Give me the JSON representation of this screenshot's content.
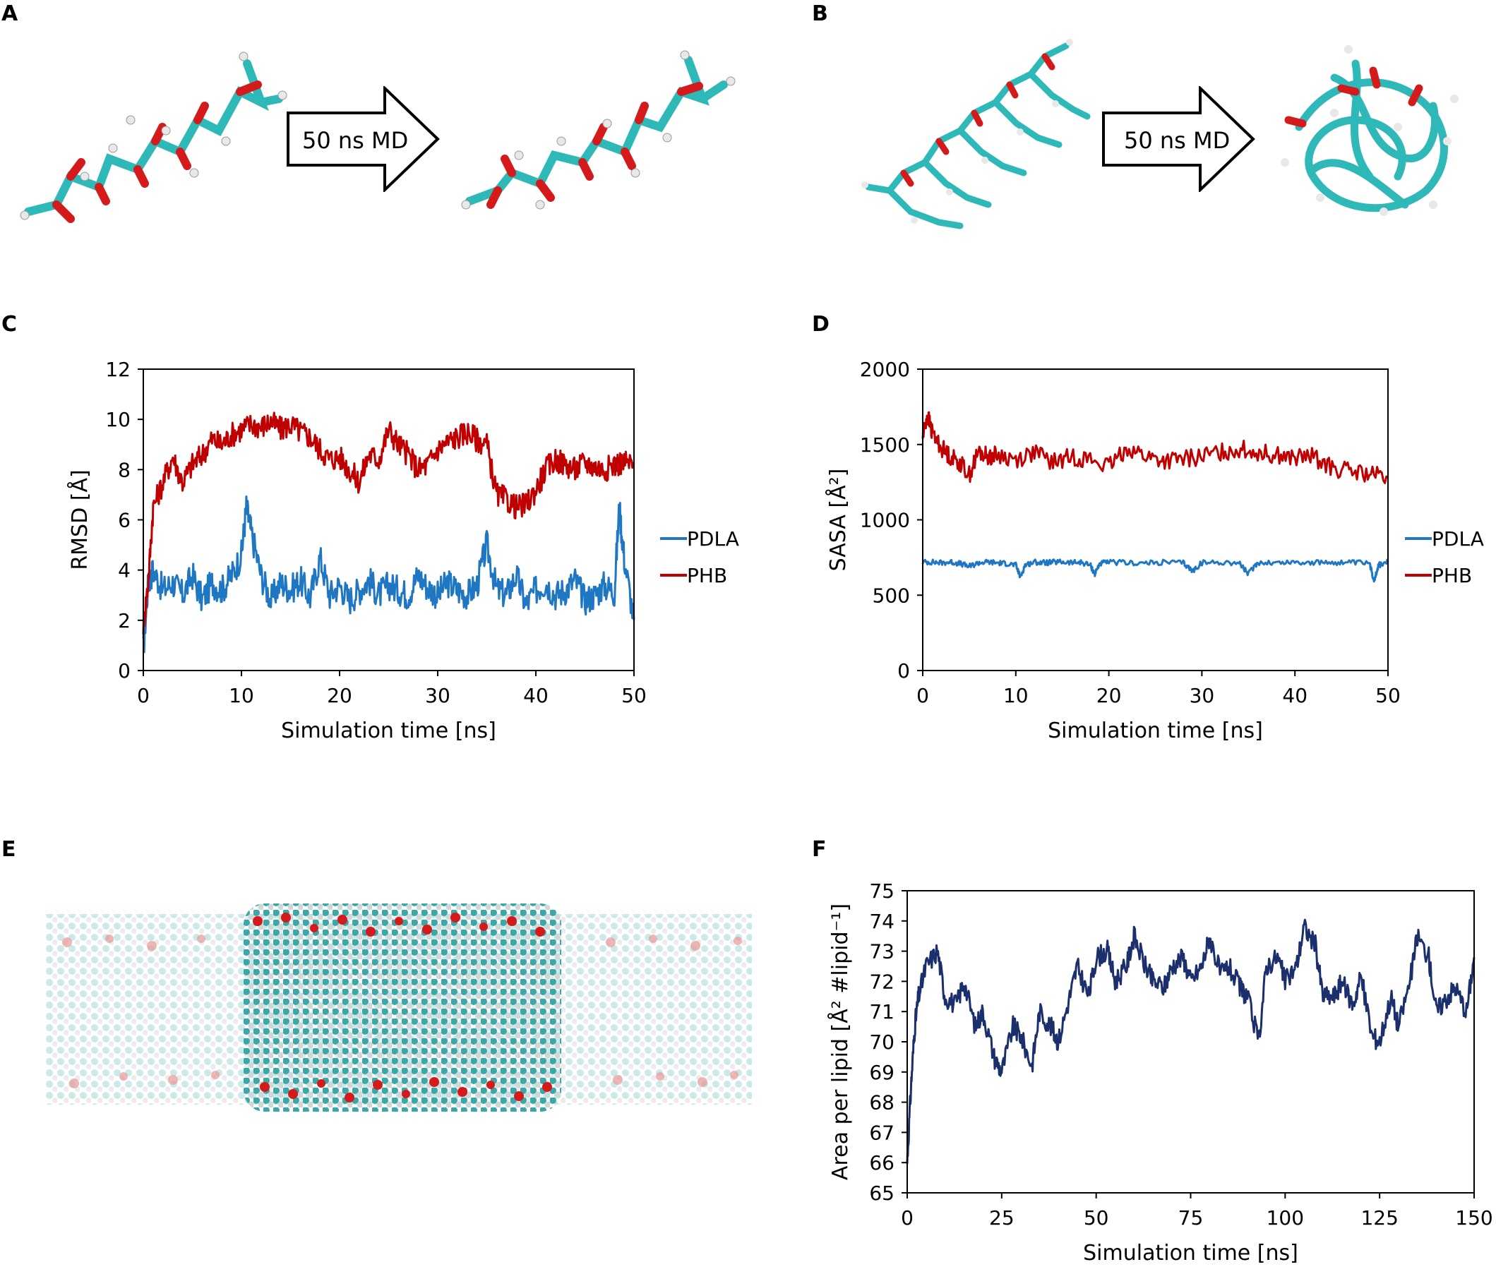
{
  "panels": {
    "A": "A",
    "B": "B",
    "C": "C",
    "D": "D",
    "E": "E",
    "F": "F"
  },
  "arrows": {
    "a_label": "50 ns MD",
    "b_label": "50 ns MD"
  },
  "colors": {
    "pdla": "#1f77c4",
    "phb": "#c00000",
    "apl": "#1a2f6b",
    "carbon": "#2fb8b8",
    "oxygen": "#d41a1a",
    "hydrogen": "#e8e8e8"
  },
  "chart_data": [
    {
      "id": "C",
      "type": "line",
      "xlabel": "Simulation time [ns]",
      "ylabel": "RMSD [Å]",
      "xlim": [
        0,
        50
      ],
      "ylim": [
        0,
        12
      ],
      "xticks": [
        0,
        10,
        20,
        30,
        40,
        50
      ],
      "yticks": [
        0,
        2,
        4,
        6,
        8,
        10,
        12
      ],
      "legend": "right",
      "series": [
        {
          "name": "PDLA",
          "color": "#1f77c4",
          "x": [
            0,
            0.5,
            1,
            2,
            3,
            4,
            5,
            6,
            7,
            8,
            9,
            10,
            10.5,
            11,
            12,
            13,
            14,
            15,
            16,
            17,
            18,
            19,
            20,
            21,
            22,
            23,
            24,
            25,
            26,
            27,
            28,
            29,
            30,
            31,
            32,
            33,
            34,
            35,
            36,
            37,
            38,
            39,
            40,
            41,
            42,
            43,
            44,
            45,
            46,
            47,
            48,
            48.5,
            49,
            50
          ],
          "values": [
            0.8,
            3.5,
            4.0,
            3.2,
            3.5,
            3.0,
            3.8,
            2.8,
            3.5,
            3.2,
            3.8,
            4.6,
            6.5,
            5.5,
            3.8,
            2.8,
            3.5,
            3.2,
            3.6,
            2.9,
            4.5,
            3.0,
            3.4,
            2.8,
            3.2,
            3.6,
            3.0,
            3.4,
            3.2,
            3.0,
            3.8,
            3.3,
            3.0,
            3.5,
            3.2,
            3.0,
            3.4,
            5.0,
            3.2,
            3.0,
            3.8,
            2.6,
            3.2,
            3.5,
            3.0,
            3.2,
            3.6,
            2.8,
            3.0,
            3.4,
            3.1,
            6.5,
            4.5,
            2.0
          ]
        },
        {
          "name": "PHB",
          "color": "#c00000",
          "x": [
            0,
            0.5,
            1,
            2,
            3,
            4,
            5,
            6,
            7,
            8,
            9,
            10,
            11,
            12,
            13,
            14,
            15,
            16,
            17,
            18,
            19,
            20,
            21,
            22,
            23,
            24,
            25,
            26,
            27,
            28,
            29,
            30,
            31,
            32,
            33,
            34,
            35,
            36,
            37,
            38,
            39,
            40,
            41,
            42,
            43,
            44,
            45,
            46,
            47,
            48,
            49,
            50
          ],
          "values": [
            1.8,
            3.5,
            6.5,
            7.5,
            8.5,
            7.5,
            8.2,
            8.6,
            9.2,
            9.0,
            9.4,
            9.6,
            9.8,
            9.7,
            9.9,
            9.6,
            9.8,
            9.5,
            9.3,
            8.8,
            8.4,
            8.5,
            8.0,
            7.5,
            8.6,
            8.4,
            9.6,
            9.0,
            8.6,
            8.0,
            8.2,
            8.8,
            9.1,
            9.3,
            9.5,
            9.2,
            9.0,
            7.0,
            6.8,
            6.5,
            6.6,
            7.2,
            8.0,
            8.4,
            8.2,
            8.0,
            8.3,
            8.1,
            8.0,
            8.2,
            8.3,
            8.2
          ]
        }
      ]
    },
    {
      "id": "D",
      "type": "line",
      "xlabel": "Simulation time [ns]",
      "ylabel": "SASA [Å²]",
      "xlim": [
        0,
        50
      ],
      "ylim": [
        0,
        2000
      ],
      "xticks": [
        0,
        10,
        20,
        30,
        40,
        50
      ],
      "yticks": [
        0,
        500,
        1000,
        1500,
        2000
      ],
      "legend": "right",
      "series": [
        {
          "name": "PDLA",
          "color": "#1f77c4",
          "x": [
            0,
            1,
            2,
            3,
            4,
            5,
            6,
            7,
            8,
            9,
            10,
            10.5,
            11,
            12,
            13,
            14,
            15,
            16,
            17,
            18,
            18.5,
            19,
            20,
            22,
            24,
            26,
            28,
            29,
            30,
            32,
            34,
            35,
            36,
            38,
            40,
            42,
            44,
            46,
            48,
            48.5,
            49,
            50
          ],
          "values": [
            720,
            720,
            715,
            720,
            710,
            690,
            715,
            720,
            715,
            710,
            700,
            620,
            700,
            720,
            715,
            718,
            720,
            715,
            718,
            700,
            640,
            710,
            718,
            715,
            712,
            718,
            715,
            660,
            715,
            718,
            715,
            640,
            718,
            715,
            720,
            715,
            718,
            715,
            712,
            600,
            700,
            720
          ]
        },
        {
          "name": "PHB",
          "color": "#c00000",
          "x": [
            0,
            0.5,
            1,
            2,
            3,
            4,
            5,
            6,
            7,
            8,
            10,
            12,
            14,
            16,
            18,
            20,
            22,
            24,
            26,
            28,
            30,
            32,
            34,
            36,
            38,
            40,
            42,
            44,
            46,
            48,
            50
          ],
          "values": [
            1550,
            1700,
            1580,
            1480,
            1420,
            1380,
            1300,
            1450,
            1420,
            1430,
            1400,
            1450,
            1380,
            1420,
            1400,
            1350,
            1480,
            1420,
            1390,
            1400,
            1420,
            1450,
            1470,
            1450,
            1430,
            1410,
            1420,
            1340,
            1320,
            1300,
            1280
          ]
        }
      ]
    },
    {
      "id": "F",
      "type": "line",
      "xlabel": "Simulation time [ns]",
      "ylabel": "Area per lipid [Å² #lipid⁻¹]",
      "xlim": [
        0,
        150
      ],
      "ylim": [
        65,
        75
      ],
      "xticks": [
        0,
        25,
        50,
        75,
        100,
        125,
        150
      ],
      "yticks": [
        65,
        66,
        67,
        68,
        69,
        70,
        71,
        72,
        73,
        74,
        75
      ],
      "legend": "none",
      "series": [
        {
          "name": "Area per lipid",
          "color": "#1a2f6b",
          "x": [
            0,
            1,
            2,
            3,
            5,
            8,
            10,
            13,
            15,
            18,
            20,
            23,
            25,
            28,
            30,
            33,
            35,
            38,
            40,
            43,
            45,
            48,
            50,
            53,
            55,
            58,
            60,
            63,
            65,
            68,
            70,
            73,
            75,
            78,
            80,
            83,
            85,
            88,
            90,
            93,
            95,
            98,
            100,
            103,
            105,
            108,
            110,
            113,
            115,
            118,
            120,
            123,
            125,
            128,
            130,
            133,
            135,
            138,
            140,
            143,
            145,
            148,
            150
          ],
          "values": [
            66.0,
            68.5,
            70.5,
            71.5,
            72.5,
            73.0,
            71.5,
            71.2,
            72.0,
            70.5,
            71.0,
            69.5,
            69.0,
            70.5,
            70.2,
            69.2,
            71.0,
            70.5,
            70.0,
            71.5,
            72.5,
            71.5,
            72.8,
            73.0,
            72.0,
            72.5,
            73.5,
            72.5,
            72.0,
            71.8,
            72.5,
            72.8,
            72.0,
            72.5,
            73.5,
            72.2,
            72.5,
            71.8,
            71.5,
            70.0,
            72.5,
            72.8,
            72.0,
            72.5,
            73.8,
            73.2,
            71.5,
            71.5,
            72.0,
            71.2,
            72.2,
            70.2,
            70.0,
            71.5,
            70.5,
            72.0,
            73.5,
            72.8,
            71.0,
            71.5,
            71.8,
            71.0,
            72.8
          ]
        }
      ]
    }
  ]
}
